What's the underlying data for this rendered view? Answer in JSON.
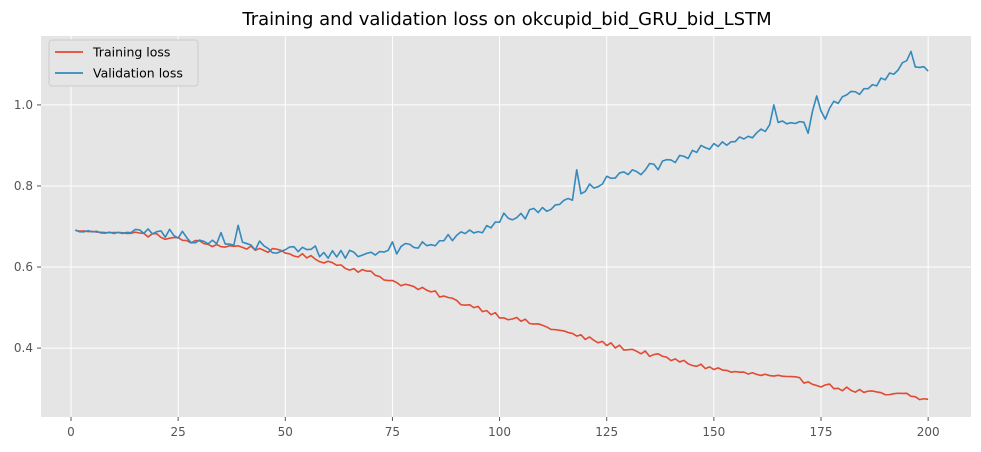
{
  "chart_data": {
    "type": "line",
    "title": "Training and validation loss on okcupid_bid_GRU_bid_LSTM",
    "xlabel": "",
    "ylabel": "",
    "xlim": [
      -7,
      210
    ],
    "ylim": [
      0.23,
      1.17
    ],
    "xticks": [
      0,
      25,
      50,
      75,
      100,
      125,
      150,
      175,
      200
    ],
    "yticks": [
      0.4,
      0.6,
      0.8,
      1.0
    ],
    "ytick_labels": [
      "0.4",
      "0.6",
      "0.8",
      "1.0"
    ],
    "grid": true,
    "legend_position": "top-left",
    "background": "#e5e5e5",
    "series": [
      {
        "name": "Training loss",
        "color": "#e24a33",
        "keypoints": [
          [
            1,
            0.69
          ],
          [
            5,
            0.687
          ],
          [
            10,
            0.685
          ],
          [
            15,
            0.683
          ],
          [
            20,
            0.677
          ],
          [
            25,
            0.668
          ],
          [
            30,
            0.66
          ],
          [
            35,
            0.652
          ],
          [
            40,
            0.65
          ],
          [
            45,
            0.643
          ],
          [
            50,
            0.635
          ],
          [
            55,
            0.625
          ],
          [
            60,
            0.613
          ],
          [
            65,
            0.598
          ],
          [
            70,
            0.585
          ],
          [
            75,
            0.565
          ],
          [
            80,
            0.55
          ],
          [
            85,
            0.535
          ],
          [
            90,
            0.515
          ],
          [
            95,
            0.5
          ],
          [
            100,
            0.48
          ],
          [
            105,
            0.468
          ],
          [
            110,
            0.455
          ],
          [
            115,
            0.44
          ],
          [
            120,
            0.425
          ],
          [
            125,
            0.41
          ],
          [
            130,
            0.398
          ],
          [
            135,
            0.385
          ],
          [
            140,
            0.372
          ],
          [
            145,
            0.36
          ],
          [
            150,
            0.35
          ],
          [
            155,
            0.34
          ],
          [
            160,
            0.335
          ],
          [
            165,
            0.328
          ],
          [
            170,
            0.322
          ],
          [
            175,
            0.31
          ],
          [
            180,
            0.3
          ],
          [
            185,
            0.292
          ],
          [
            190,
            0.285
          ],
          [
            195,
            0.285
          ],
          [
            198,
            0.275
          ],
          [
            200,
            0.272
          ]
        ],
        "noise": 0.006
      },
      {
        "name": "Validation loss",
        "color": "#348abd",
        "keypoints": [
          [
            1,
            0.69
          ],
          [
            5,
            0.687
          ],
          [
            10,
            0.685
          ],
          [
            15,
            0.683
          ],
          [
            20,
            0.68
          ],
          [
            25,
            0.672
          ],
          [
            30,
            0.662
          ],
          [
            35,
            0.658
          ],
          [
            40,
            0.652
          ],
          [
            45,
            0.645
          ],
          [
            50,
            0.64
          ],
          [
            55,
            0.637
          ],
          [
            60,
            0.633
          ],
          [
            65,
            0.632
          ],
          [
            70,
            0.635
          ],
          [
            75,
            0.642
          ],
          [
            80,
            0.65
          ],
          [
            85,
            0.66
          ],
          [
            90,
            0.675
          ],
          [
            95,
            0.69
          ],
          [
            100,
            0.71
          ],
          [
            105,
            0.725
          ],
          [
            110,
            0.74
          ],
          [
            115,
            0.76
          ],
          [
            120,
            0.79
          ],
          [
            125,
            0.815
          ],
          [
            130,
            0.83
          ],
          [
            135,
            0.845
          ],
          [
            140,
            0.855
          ],
          [
            145,
            0.88
          ],
          [
            150,
            0.905
          ],
          [
            155,
            0.915
          ],
          [
            160,
            0.93
          ],
          [
            165,
            0.955
          ],
          [
            170,
            0.96
          ],
          [
            175,
            0.98
          ],
          [
            180,
            1.01
          ],
          [
            185,
            1.04
          ],
          [
            190,
            1.07
          ],
          [
            195,
            1.11
          ],
          [
            197,
            1.09
          ],
          [
            200,
            1.08
          ]
        ],
        "spikes": [
          [
            18,
            0.694
          ],
          [
            23,
            0.693
          ],
          [
            26,
            0.688
          ],
          [
            35,
            0.685
          ],
          [
            39,
            0.703
          ],
          [
            44,
            0.664
          ],
          [
            57,
            0.652
          ],
          [
            75,
            0.662
          ],
          [
            101,
            0.733
          ],
          [
            118,
            0.84
          ],
          [
            164,
            1.0
          ],
          [
            172,
            0.93
          ],
          [
            174,
            1.022
          ],
          [
            176,
            0.965
          ],
          [
            186,
            1.04
          ],
          [
            196,
            1.132
          ]
        ],
        "noise": 0.012
      }
    ]
  }
}
